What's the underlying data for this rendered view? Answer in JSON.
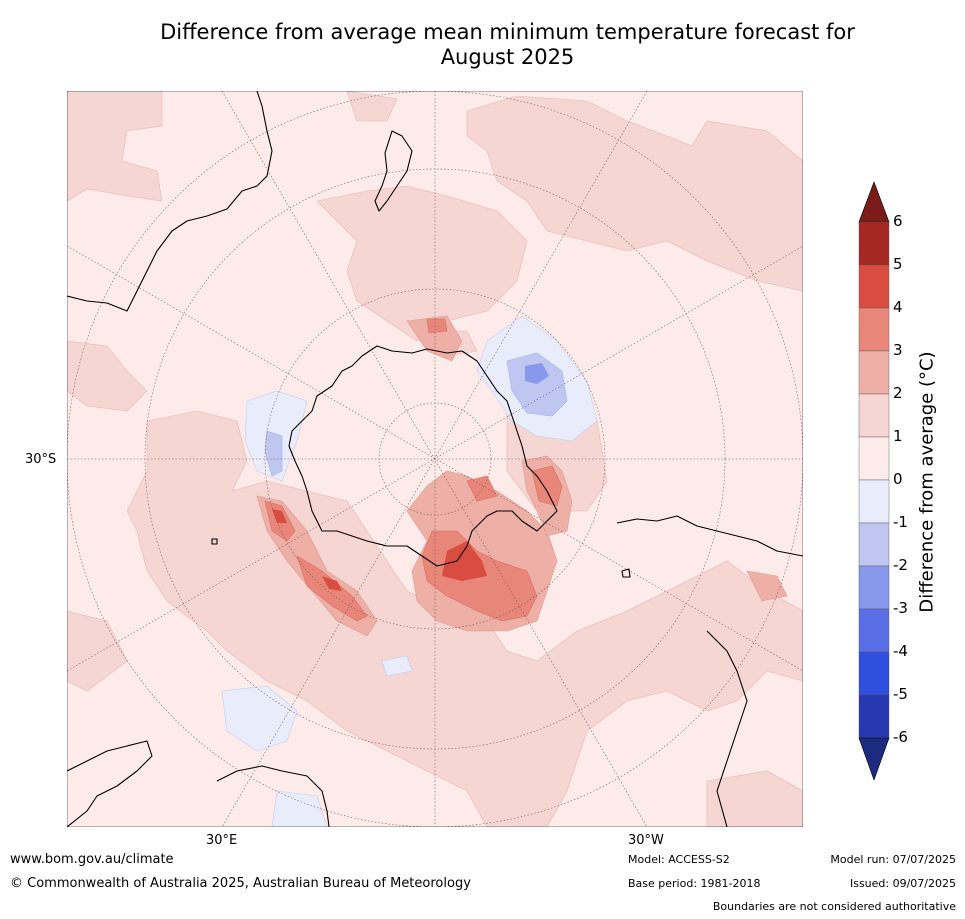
{
  "title_line1": "Difference from average mean minimum temperature forecast for",
  "title_line2": "August 2025",
  "map": {
    "projection": "south-polar-stereographic",
    "lat_label": "30°S",
    "lon_labels": [
      "30°E",
      "30°W"
    ],
    "ocean_color": "#fcebe9",
    "land_outline_color": "#000000"
  },
  "colorbar": {
    "label": "Difference from average (°C)",
    "ticks": [
      "6",
      "5",
      "4",
      "3",
      "2",
      "1",
      "0",
      "-1",
      "-2",
      "-3",
      "-4",
      "-5",
      "-6"
    ],
    "levels": [
      {
        "range": "above 6",
        "color": "#7a1c1a"
      },
      {
        "range": "5 to 6",
        "color": "#a52822"
      },
      {
        "range": "4 to 5",
        "color": "#d94c40"
      },
      {
        "range": "3 to 4",
        "color": "#e8867a"
      },
      {
        "range": "2 to 3",
        "color": "#edafa6"
      },
      {
        "range": "1 to 2",
        "color": "#f5d6d3"
      },
      {
        "range": "0 to 1",
        "color": "#fcebe9"
      },
      {
        "range": "-1 to 0",
        "color": "#e8ecfb"
      },
      {
        "range": "-2 to -1",
        "color": "#bfc7f1"
      },
      {
        "range": "-3 to -2",
        "color": "#8898ea"
      },
      {
        "range": "-4 to -3",
        "color": "#5a6fe6"
      },
      {
        "range": "-5 to -4",
        "color": "#2f4fdf"
      },
      {
        "range": "-6 to -5",
        "color": "#2838b0"
      },
      {
        "range": "below -6",
        "color": "#1c2a80"
      }
    ]
  },
  "footer": {
    "website": "www.bom.gov.au/climate",
    "copyright": "© Commonwealth of Australia 2025, Australian Bureau of Meteorology",
    "model": "Model: ACCESS-S2",
    "base_period": "Base period: 1981-2018",
    "model_run": "Model run: 07/07/2025",
    "issued": "Issued: 09/07/2025",
    "disclaimer": "Boundaries are not considered authoritative"
  }
}
